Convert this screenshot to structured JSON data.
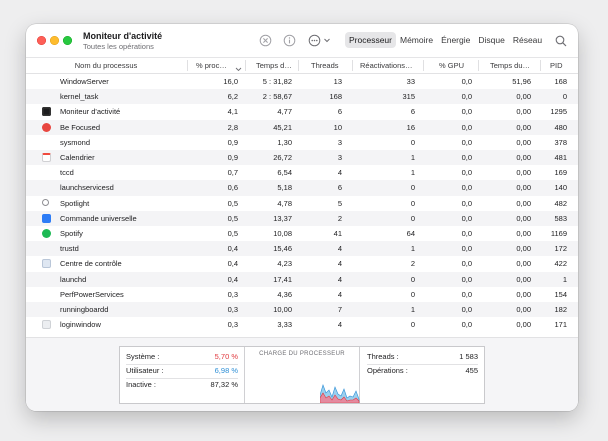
{
  "window": {
    "title": "Moniteur d'activité",
    "subtitle": "Toutes les opérations"
  },
  "toolbar": {
    "icons": [
      "close-process-icon",
      "info-icon",
      "more-options-icon",
      "chevron-down-icon",
      "search-icon"
    ],
    "tabs": [
      "Processeur",
      "Mémoire",
      "Énergie",
      "Disque",
      "Réseau"
    ],
    "active_tab": "Processeur"
  },
  "table": {
    "columns": [
      "Nom du processus",
      "% proc…",
      "Temps d…",
      "Threads",
      "Réactivations…",
      "% GPU",
      "Temps du…",
      "PID"
    ],
    "rows": [
      {
        "name": "WindowServer",
        "icon": "none",
        "cpu": "16,0",
        "time": "5 : 31,82",
        "threads": "13",
        "wakeups": "33",
        "gpu": "0,0",
        "gputime": "51,96",
        "pid": "168"
      },
      {
        "name": "kernel_task",
        "icon": "none",
        "cpu": "6,2",
        "time": "2 : 58,67",
        "threads": "168",
        "wakeups": "315",
        "gpu": "0,0",
        "gputime": "0,00",
        "pid": "0"
      },
      {
        "name": "Moniteur d'activité",
        "icon": "activity-monitor-icon",
        "cpu": "4,1",
        "time": "4,77",
        "threads": "6",
        "wakeups": "6",
        "gpu": "0,0",
        "gputime": "0,00",
        "pid": "1295"
      },
      {
        "name": "Be Focused",
        "icon": "be-focused-icon",
        "cpu": "2,8",
        "time": "45,21",
        "threads": "10",
        "wakeups": "16",
        "gpu": "0,0",
        "gputime": "0,00",
        "pid": "480"
      },
      {
        "name": "sysmond",
        "icon": "none",
        "cpu": "0,9",
        "time": "1,30",
        "threads": "3",
        "wakeups": "0",
        "gpu": "0,0",
        "gputime": "0,00",
        "pid": "378"
      },
      {
        "name": "Calendrier",
        "icon": "calendar-icon",
        "cpu": "0,9",
        "time": "26,72",
        "threads": "3",
        "wakeups": "1",
        "gpu": "0,0",
        "gputime": "0,00",
        "pid": "481"
      },
      {
        "name": "tccd",
        "icon": "none",
        "cpu": "0,7",
        "time": "6,54",
        "threads": "4",
        "wakeups": "1",
        "gpu": "0,0",
        "gputime": "0,00",
        "pid": "169"
      },
      {
        "name": "launchservicesd",
        "icon": "none",
        "cpu": "0,6",
        "time": "5,18",
        "threads": "6",
        "wakeups": "0",
        "gpu": "0,0",
        "gputime": "0,00",
        "pid": "140"
      },
      {
        "name": "Spotlight",
        "icon": "spotlight-icon",
        "cpu": "0,5",
        "time": "4,78",
        "threads": "5",
        "wakeups": "0",
        "gpu": "0,0",
        "gputime": "0,00",
        "pid": "482"
      },
      {
        "name": "Commande universelle",
        "icon": "universal-control-icon",
        "cpu": "0,5",
        "time": "13,37",
        "threads": "2",
        "wakeups": "0",
        "gpu": "0,0",
        "gputime": "0,00",
        "pid": "583"
      },
      {
        "name": "Spotify",
        "icon": "spotify-icon",
        "cpu": "0,5",
        "time": "10,08",
        "threads": "41",
        "wakeups": "64",
        "gpu": "0,0",
        "gputime": "0,00",
        "pid": "1169"
      },
      {
        "name": "trustd",
        "icon": "none",
        "cpu": "0,4",
        "time": "15,46",
        "threads": "4",
        "wakeups": "1",
        "gpu": "0,0",
        "gputime": "0,00",
        "pid": "172"
      },
      {
        "name": "Centre de contrôle",
        "icon": "control-center-icon",
        "cpu": "0,4",
        "time": "4,23",
        "threads": "4",
        "wakeups": "2",
        "gpu": "0,0",
        "gputime": "0,00",
        "pid": "422"
      },
      {
        "name": "launchd",
        "icon": "none",
        "cpu": "0,4",
        "time": "17,41",
        "threads": "4",
        "wakeups": "0",
        "gpu": "0,0",
        "gputime": "0,00",
        "pid": "1"
      },
      {
        "name": "PerfPowerServices",
        "icon": "none",
        "cpu": "0,3",
        "time": "4,36",
        "threads": "4",
        "wakeups": "0",
        "gpu": "0,0",
        "gputime": "0,00",
        "pid": "154"
      },
      {
        "name": "runningboardd",
        "icon": "none",
        "cpu": "0,3",
        "time": "10,00",
        "threads": "7",
        "wakeups": "1",
        "gpu": "0,0",
        "gputime": "0,00",
        "pid": "182"
      },
      {
        "name": "loginwindow",
        "icon": "loginwindow-icon",
        "cpu": "0,3",
        "time": "3,33",
        "threads": "4",
        "wakeups": "0",
        "gpu": "0,0",
        "gputime": "0,00",
        "pid": "171"
      }
    ]
  },
  "summary": {
    "system_label": "Système :",
    "system_value": "5,70 %",
    "user_label": "Utilisateur :",
    "user_value": "6,98 %",
    "idle_label": "Inactive :",
    "idle_value": "87,32 %",
    "chart_title": "CHARGE DU PROCESSEUR",
    "threads_label": "Threads :",
    "threads_value": "1 583",
    "processes_label": "Opérations :",
    "processes_value": "455"
  },
  "colors": {
    "system": "#e0393e",
    "user": "#2e8fd6",
    "accent": "#e6e6e8"
  }
}
